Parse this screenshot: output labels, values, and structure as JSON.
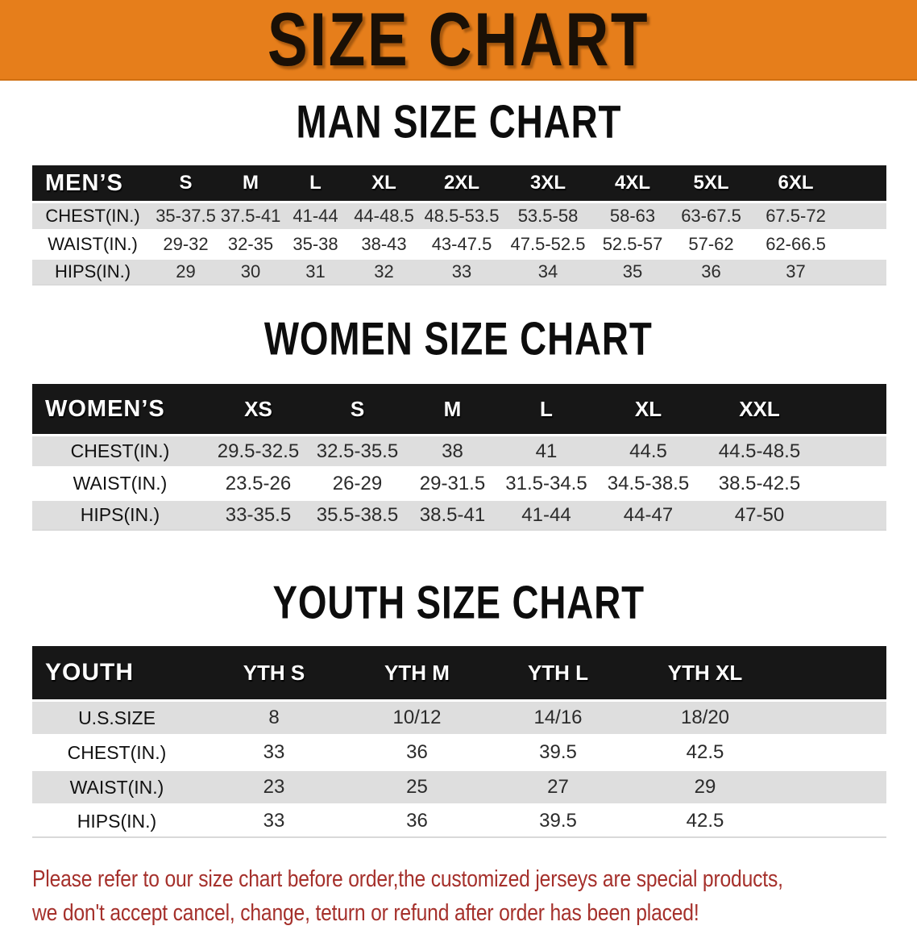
{
  "banner": {
    "title": "SIZE CHART"
  },
  "colors": {
    "banner_bg": "#E67E1B",
    "table_header_bg": "#171717",
    "row_stripe": "#DEDEDE",
    "disclaimer_text": "#A5302B"
  },
  "sections": [
    {
      "heading": "MAN SIZE CHART",
      "table": {
        "corner_label": "MEN’S",
        "columns": [
          "S",
          "M",
          "L",
          "XL",
          "2XL",
          "3XL",
          "4XL",
          "5XL",
          "6XL"
        ],
        "rows": [
          {
            "label": "CHEST(IN.)",
            "values": [
              "35-37.5",
              "37.5-41",
              "41-44",
              "44-48.5",
              "48.5-53.5",
              "53.5-58",
              "58-63",
              "63-67.5",
              "67.5-72"
            ]
          },
          {
            "label": "WAIST(IN.)",
            "values": [
              "29-32",
              "32-35",
              "35-38",
              "38-43",
              "43-47.5",
              "47.5-52.5",
              "52.5-57",
              "57-62",
              "62-66.5"
            ]
          },
          {
            "label": "HIPS(IN.)",
            "values": [
              "29",
              "30",
              "31",
              "32",
              "33",
              "34",
              "35",
              "36",
              "37"
            ]
          }
        ]
      }
    },
    {
      "heading": "WOMEN SIZE CHART",
      "table": {
        "corner_label": "WOMEN’S",
        "columns": [
          "XS",
          "S",
          "M",
          "L",
          "XL",
          "XXL"
        ],
        "rows": [
          {
            "label": "CHEST(IN.)",
            "values": [
              "29.5-32.5",
              "32.5-35.5",
              "38",
              "41",
              "44.5",
              "44.5-48.5"
            ]
          },
          {
            "label": "WAIST(IN.)",
            "values": [
              "23.5-26",
              "26-29",
              "29-31.5",
              "31.5-34.5",
              "34.5-38.5",
              "38.5-42.5"
            ]
          },
          {
            "label": "HIPS(IN.)",
            "values": [
              "33-35.5",
              "35.5-38.5",
              "38.5-41",
              "41-44",
              "44-47",
              "47-50"
            ]
          }
        ]
      }
    },
    {
      "heading": "YOUTH SIZE CHART",
      "table": {
        "corner_label": "YOUTH",
        "columns": [
          "YTH S",
          "YTH M",
          "YTH L",
          "YTH XL"
        ],
        "rows": [
          {
            "label": "U.S.SIZE",
            "values": [
              "8",
              "10/12",
              "14/16",
              "18/20"
            ]
          },
          {
            "label": "CHEST(IN.)",
            "values": [
              "33",
              "36",
              "39.5",
              "42.5"
            ]
          },
          {
            "label": "WAIST(IN.)",
            "values": [
              "23",
              "25",
              "27",
              "29"
            ]
          },
          {
            "label": "HIPS(IN.)",
            "values": [
              "33",
              "36",
              "39.5",
              "42.5"
            ]
          }
        ]
      }
    }
  ],
  "disclaimer": {
    "line1": "Please refer to our size chart before order,the customized jerseys are special products,",
    "line2": "we don't accept cancel, change, teturn or refund after order has been placed!"
  }
}
